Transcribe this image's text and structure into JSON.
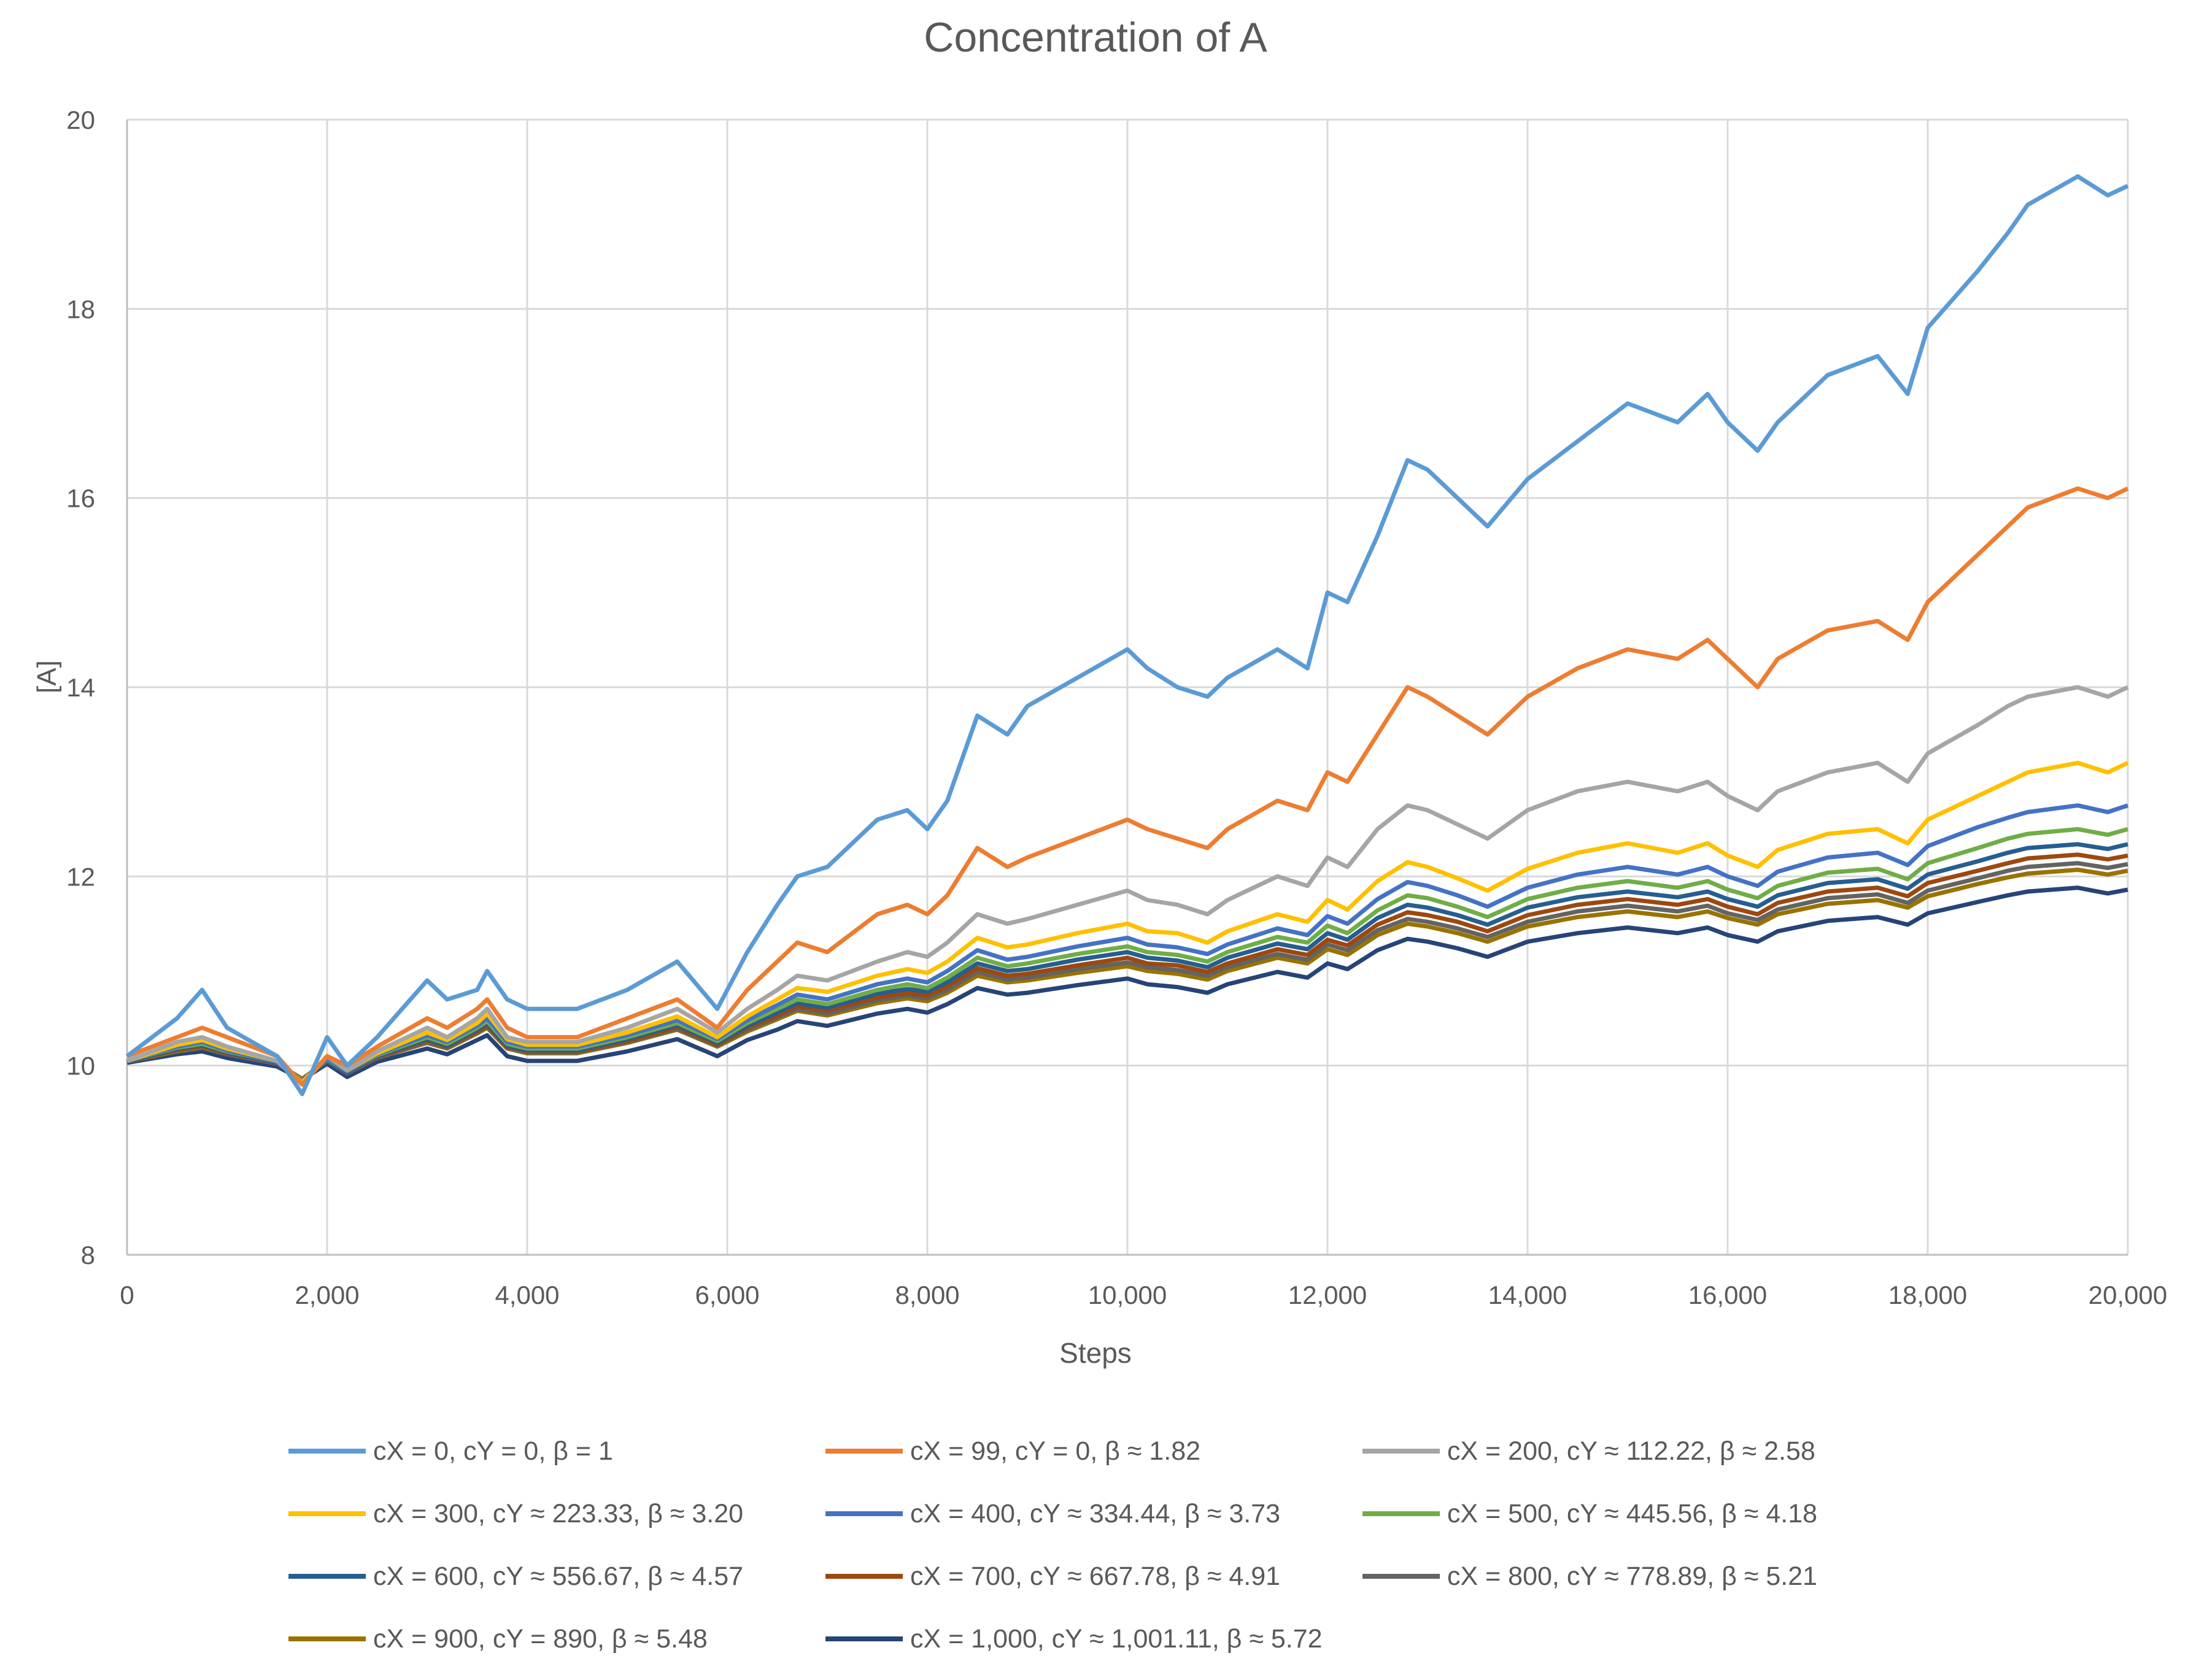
{
  "chart_data": {
    "type": "line",
    "title": "Concentration of A",
    "xlabel": "Steps",
    "ylabel": "[A]",
    "xlim": [
      0,
      20000
    ],
    "ylim": [
      8,
      20
    ],
    "x_ticks": [
      0,
      2000,
      4000,
      6000,
      8000,
      10000,
      12000,
      14000,
      16000,
      18000,
      20000
    ],
    "x_tick_labels": [
      "0",
      "2,000",
      "4,000",
      "6,000",
      "8,000",
      "10,000",
      "12,000",
      "14,000",
      "16,000",
      "18,000",
      "20,000"
    ],
    "y_ticks": [
      8,
      10,
      12,
      14,
      16,
      18,
      20
    ],
    "y_tick_labels": [
      "8",
      "10",
      "12",
      "14",
      "16",
      "18",
      "20"
    ],
    "grid": true,
    "legend_position": "bottom",
    "x": [
      0,
      500,
      750,
      1000,
      1500,
      1750,
      2000,
      2200,
      2500,
      3000,
      3200,
      3500,
      3600,
      3800,
      4000,
      4500,
      5000,
      5500,
      5900,
      6200,
      6500,
      6700,
      7000,
      7500,
      7800,
      8000,
      8200,
      8500,
      8800,
      9000,
      9500,
      10000,
      10200,
      10500,
      10800,
      11000,
      11500,
      11800,
      12000,
      12200,
      12500,
      12800,
      13000,
      13300,
      13600,
      14000,
      14500,
      15000,
      15500,
      15800,
      16000,
      16300,
      16500,
      17000,
      17500,
      17800,
      18000,
      18500,
      18800,
      19000,
      19500,
      19800,
      20000
    ],
    "series": [
      {
        "name": "cX = 0, cY = 0, β = 1",
        "color": "#5B9BD5",
        "values": [
          10.1,
          10.5,
          10.8,
          10.4,
          10.1,
          9.7,
          10.3,
          10.0,
          10.3,
          10.9,
          10.7,
          10.8,
          11.0,
          10.7,
          10.6,
          10.6,
          10.8,
          11.1,
          10.6,
          11.2,
          11.7,
          12.0,
          12.1,
          12.6,
          12.7,
          12.5,
          12.8,
          13.7,
          13.5,
          13.8,
          14.1,
          14.4,
          14.2,
          14.0,
          13.9,
          14.1,
          14.4,
          14.2,
          15.0,
          14.9,
          15.6,
          16.4,
          16.3,
          16.0,
          15.7,
          16.2,
          16.6,
          17.0,
          16.8,
          17.1,
          16.8,
          16.5,
          16.8,
          17.3,
          17.5,
          17.1,
          17.8,
          18.4,
          18.8,
          19.1,
          19.4,
          19.2,
          19.3
        ]
      },
      {
        "name": "cX = 99, cY = 0, β ≈ 1.82",
        "color": "#ED7D31",
        "values": [
          10.1,
          10.3,
          10.4,
          10.3,
          10.1,
          9.8,
          10.1,
          10.0,
          10.2,
          10.5,
          10.4,
          10.6,
          10.7,
          10.4,
          10.3,
          10.3,
          10.5,
          10.7,
          10.4,
          10.8,
          11.1,
          11.3,
          11.2,
          11.6,
          11.7,
          11.6,
          11.8,
          12.3,
          12.1,
          12.2,
          12.4,
          12.6,
          12.5,
          12.4,
          12.3,
          12.5,
          12.8,
          12.7,
          13.1,
          13.0,
          13.5,
          14.0,
          13.9,
          13.7,
          13.5,
          13.9,
          14.2,
          14.4,
          14.3,
          14.5,
          14.3,
          14.0,
          14.3,
          14.6,
          14.7,
          14.5,
          14.9,
          15.4,
          15.7,
          15.9,
          16.1,
          16.0,
          16.1
        ]
      },
      {
        "name": "cX = 200, cY ≈ 112.22, β ≈ 2.58",
        "color": "#A5A5A5",
        "values": [
          10.05,
          10.25,
          10.3,
          10.2,
          10.05,
          9.8,
          10.1,
          9.95,
          10.15,
          10.4,
          10.3,
          10.5,
          10.6,
          10.3,
          10.25,
          10.25,
          10.4,
          10.6,
          10.35,
          10.6,
          10.8,
          10.95,
          10.9,
          11.1,
          11.2,
          11.15,
          11.3,
          11.6,
          11.5,
          11.55,
          11.7,
          11.85,
          11.75,
          11.7,
          11.6,
          11.75,
          12.0,
          11.9,
          12.2,
          12.1,
          12.5,
          12.75,
          12.7,
          12.55,
          12.4,
          12.7,
          12.9,
          13.0,
          12.9,
          13.0,
          12.85,
          12.7,
          12.9,
          13.1,
          13.2,
          13.0,
          13.3,
          13.6,
          13.8,
          13.9,
          14.0,
          13.9,
          14.0
        ]
      },
      {
        "name": "cX = 300, cY ≈ 223.33, β ≈ 3.20",
        "color": "#FFC000",
        "values": [
          10.05,
          10.22,
          10.27,
          10.18,
          10.05,
          9.82,
          10.1,
          9.95,
          10.13,
          10.35,
          10.27,
          10.45,
          10.55,
          10.28,
          10.22,
          10.22,
          10.35,
          10.52,
          10.3,
          10.52,
          10.7,
          10.82,
          10.78,
          10.95,
          11.02,
          10.98,
          11.1,
          11.35,
          11.25,
          11.28,
          11.4,
          11.5,
          11.42,
          11.4,
          11.3,
          11.42,
          11.6,
          11.52,
          11.75,
          11.65,
          11.95,
          12.15,
          12.1,
          11.98,
          11.85,
          12.08,
          12.25,
          12.35,
          12.25,
          12.35,
          12.22,
          12.1,
          12.28,
          12.45,
          12.5,
          12.35,
          12.6,
          12.85,
          13.0,
          13.1,
          13.2,
          13.1,
          13.2
        ]
      },
      {
        "name": "cX = 400, cY ≈ 334.44, β ≈ 3.73",
        "color": "#4472C4",
        "values": [
          10.05,
          10.2,
          10.25,
          10.16,
          10.04,
          9.83,
          10.08,
          9.94,
          10.12,
          10.32,
          10.25,
          10.42,
          10.5,
          10.25,
          10.2,
          10.2,
          10.32,
          10.48,
          10.28,
          10.48,
          10.64,
          10.75,
          10.7,
          10.86,
          10.92,
          10.88,
          11.0,
          11.22,
          11.12,
          11.15,
          11.26,
          11.35,
          11.28,
          11.25,
          11.18,
          11.28,
          11.45,
          11.38,
          11.58,
          11.5,
          11.76,
          11.94,
          11.9,
          11.8,
          11.68,
          11.88,
          12.02,
          12.1,
          12.02,
          12.1,
          12.0,
          11.9,
          12.05,
          12.2,
          12.25,
          12.12,
          12.32,
          12.52,
          12.62,
          12.68,
          12.75,
          12.68,
          12.75
        ]
      },
      {
        "name": "cX = 500, cY ≈ 445.56, β ≈ 4.18",
        "color": "#70AD47",
        "values": [
          10.05,
          10.19,
          10.23,
          10.15,
          10.04,
          9.84,
          10.07,
          9.94,
          10.11,
          10.3,
          10.23,
          10.4,
          10.47,
          10.23,
          10.18,
          10.18,
          10.3,
          10.45,
          10.26,
          10.45,
          10.6,
          10.7,
          10.65,
          10.8,
          10.86,
          10.82,
          10.93,
          11.14,
          11.05,
          11.08,
          11.18,
          11.26,
          11.2,
          11.17,
          11.1,
          11.2,
          11.36,
          11.3,
          11.48,
          11.4,
          11.64,
          11.8,
          11.77,
          11.68,
          11.57,
          11.76,
          11.88,
          11.95,
          11.88,
          11.95,
          11.86,
          11.77,
          11.9,
          12.04,
          12.08,
          11.97,
          12.14,
          12.3,
          12.4,
          12.45,
          12.5,
          12.44,
          12.5
        ]
      },
      {
        "name": "cX = 600, cY ≈ 556.67, β ≈ 4.57",
        "color": "#255E91",
        "values": [
          10.04,
          10.18,
          10.22,
          10.14,
          10.03,
          9.84,
          10.06,
          9.93,
          10.1,
          10.28,
          10.21,
          10.38,
          10.45,
          10.21,
          10.16,
          10.16,
          10.28,
          10.43,
          10.24,
          10.42,
          10.56,
          10.66,
          10.61,
          10.76,
          10.81,
          10.78,
          10.88,
          11.08,
          11.0,
          11.02,
          11.12,
          11.2,
          11.14,
          11.11,
          11.04,
          11.14,
          11.29,
          11.23,
          11.4,
          11.33,
          11.56,
          11.7,
          11.67,
          11.59,
          11.49,
          11.67,
          11.78,
          11.84,
          11.78,
          11.84,
          11.76,
          11.68,
          11.8,
          11.93,
          11.97,
          11.87,
          12.02,
          12.16,
          12.25,
          12.3,
          12.34,
          12.29,
          12.34
        ]
      },
      {
        "name": "cX = 700, cY ≈ 667.78, β ≈ 4.91",
        "color": "#9E480E",
        "values": [
          10.04,
          10.17,
          10.21,
          10.13,
          10.03,
          9.85,
          10.06,
          9.93,
          10.09,
          10.27,
          10.2,
          10.36,
          10.43,
          10.2,
          10.15,
          10.15,
          10.26,
          10.41,
          10.22,
          10.4,
          10.53,
          10.63,
          10.58,
          10.72,
          10.77,
          10.74,
          10.84,
          11.03,
          10.95,
          10.97,
          11.06,
          11.14,
          11.08,
          11.06,
          10.99,
          11.08,
          11.23,
          11.17,
          11.33,
          11.27,
          11.49,
          11.62,
          11.59,
          11.52,
          11.42,
          11.59,
          11.7,
          11.76,
          11.7,
          11.76,
          11.68,
          11.6,
          11.72,
          11.84,
          11.88,
          11.79,
          11.93,
          12.06,
          12.14,
          12.19,
          12.23,
          12.18,
          12.22
        ]
      },
      {
        "name": "cX = 800, cY ≈ 778.89, β ≈ 5.21",
        "color": "#636363",
        "values": [
          10.04,
          10.16,
          10.2,
          10.12,
          10.02,
          9.85,
          10.05,
          9.92,
          10.08,
          10.25,
          10.19,
          10.35,
          10.41,
          10.19,
          10.14,
          10.14,
          10.25,
          10.39,
          10.21,
          10.38,
          10.51,
          10.6,
          10.55,
          10.69,
          10.74,
          10.71,
          10.8,
          10.99,
          10.91,
          10.93,
          11.02,
          11.09,
          11.04,
          11.01,
          10.95,
          11.04,
          11.18,
          11.12,
          11.28,
          11.22,
          11.43,
          11.55,
          11.52,
          11.45,
          11.36,
          11.52,
          11.63,
          11.69,
          11.63,
          11.69,
          11.61,
          11.54,
          11.65,
          11.77,
          11.81,
          11.72,
          11.85,
          11.98,
          12.06,
          12.1,
          12.14,
          12.09,
          12.13
        ]
      },
      {
        "name": "cX = 900, cY = 890, β ≈ 5.48",
        "color": "#997300",
        "values": [
          10.04,
          10.15,
          10.19,
          10.12,
          10.02,
          9.86,
          10.05,
          9.92,
          10.08,
          10.24,
          10.18,
          10.34,
          10.4,
          10.18,
          10.13,
          10.13,
          10.24,
          10.38,
          10.2,
          10.36,
          10.49,
          10.58,
          10.53,
          10.66,
          10.71,
          10.68,
          10.77,
          10.95,
          10.88,
          10.9,
          10.98,
          11.05,
          11.0,
          10.97,
          10.91,
          11.0,
          11.14,
          11.08,
          11.23,
          11.17,
          11.38,
          11.5,
          11.47,
          11.4,
          11.31,
          11.47,
          11.57,
          11.63,
          11.57,
          11.63,
          11.56,
          11.49,
          11.6,
          11.71,
          11.75,
          11.67,
          11.79,
          11.92,
          11.99,
          12.03,
          12.07,
          12.02,
          12.06
        ]
      },
      {
        "name": "cX = 1,000, cY ≈ 1,001.11, β ≈ 5.72",
        "color": "#264478",
        "values": [
          10.03,
          10.12,
          10.15,
          10.08,
          9.99,
          9.85,
          10.02,
          9.88,
          10.04,
          10.18,
          10.12,
          10.27,
          10.32,
          10.1,
          10.05,
          10.05,
          10.15,
          10.28,
          10.1,
          10.27,
          10.38,
          10.47,
          10.42,
          10.55,
          10.6,
          10.56,
          10.65,
          10.82,
          10.75,
          10.77,
          10.85,
          10.92,
          10.86,
          10.83,
          10.77,
          10.86,
          10.99,
          10.93,
          11.08,
          11.02,
          11.22,
          11.34,
          11.31,
          11.24,
          11.15,
          11.31,
          11.4,
          11.46,
          11.4,
          11.46,
          11.38,
          11.31,
          11.42,
          11.53,
          11.57,
          11.49,
          11.61,
          11.73,
          11.8,
          11.84,
          11.88,
          11.82,
          11.86
        ]
      }
    ]
  }
}
